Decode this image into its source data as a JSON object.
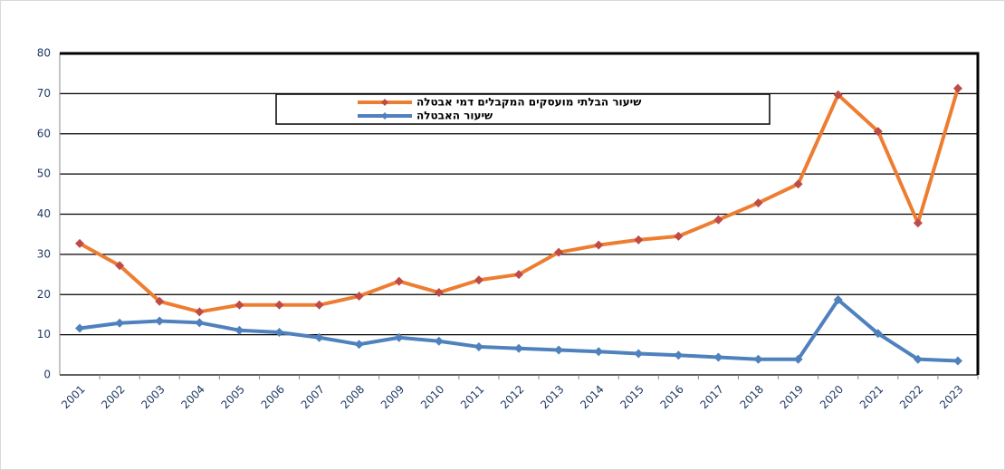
{
  "chart_data": {
    "type": "line",
    "categories": [
      "2001",
      "2002",
      "2003",
      "2004",
      "2005",
      "2006",
      "2007",
      "2008",
      "2009",
      "2010",
      "2011",
      "2012",
      "2013",
      "2014",
      "2015",
      "2016",
      "2017",
      "2018",
      "2019",
      "2020",
      "2021",
      "2022",
      "2023"
    ],
    "series": [
      {
        "name": "שיעור הבלתי מועסקים המקבלים דמי אבטלה",
        "color": "#ed7d31",
        "marker_color": "#be4b48",
        "values": [
          32.7,
          27.2,
          18.3,
          15.7,
          17.4,
          17.4,
          17.4,
          19.6,
          23.3,
          20.5,
          23.6,
          25,
          30.5,
          32.3,
          33.6,
          34.5,
          38.6,
          42.8,
          47.5,
          69.7,
          60.6,
          37.8,
          71.3
        ]
      },
      {
        "name": "שיעור האבטלה",
        "color": "#4f81bd",
        "marker_color": "#4f81bd",
        "values": [
          11.6,
          12.9,
          13.4,
          13,
          11.1,
          10.6,
          9.3,
          7.6,
          9.3,
          8.4,
          7,
          6.6,
          6.2,
          5.8,
          5.3,
          4.9,
          4.4,
          3.9,
          3.9,
          18.7,
          10.3,
          3.9,
          3.5
        ]
      }
    ],
    "ylim": [
      0,
      80
    ],
    "yticks": [
      0,
      10,
      20,
      30,
      40,
      50,
      60,
      70,
      80
    ],
    "grid": true
  }
}
